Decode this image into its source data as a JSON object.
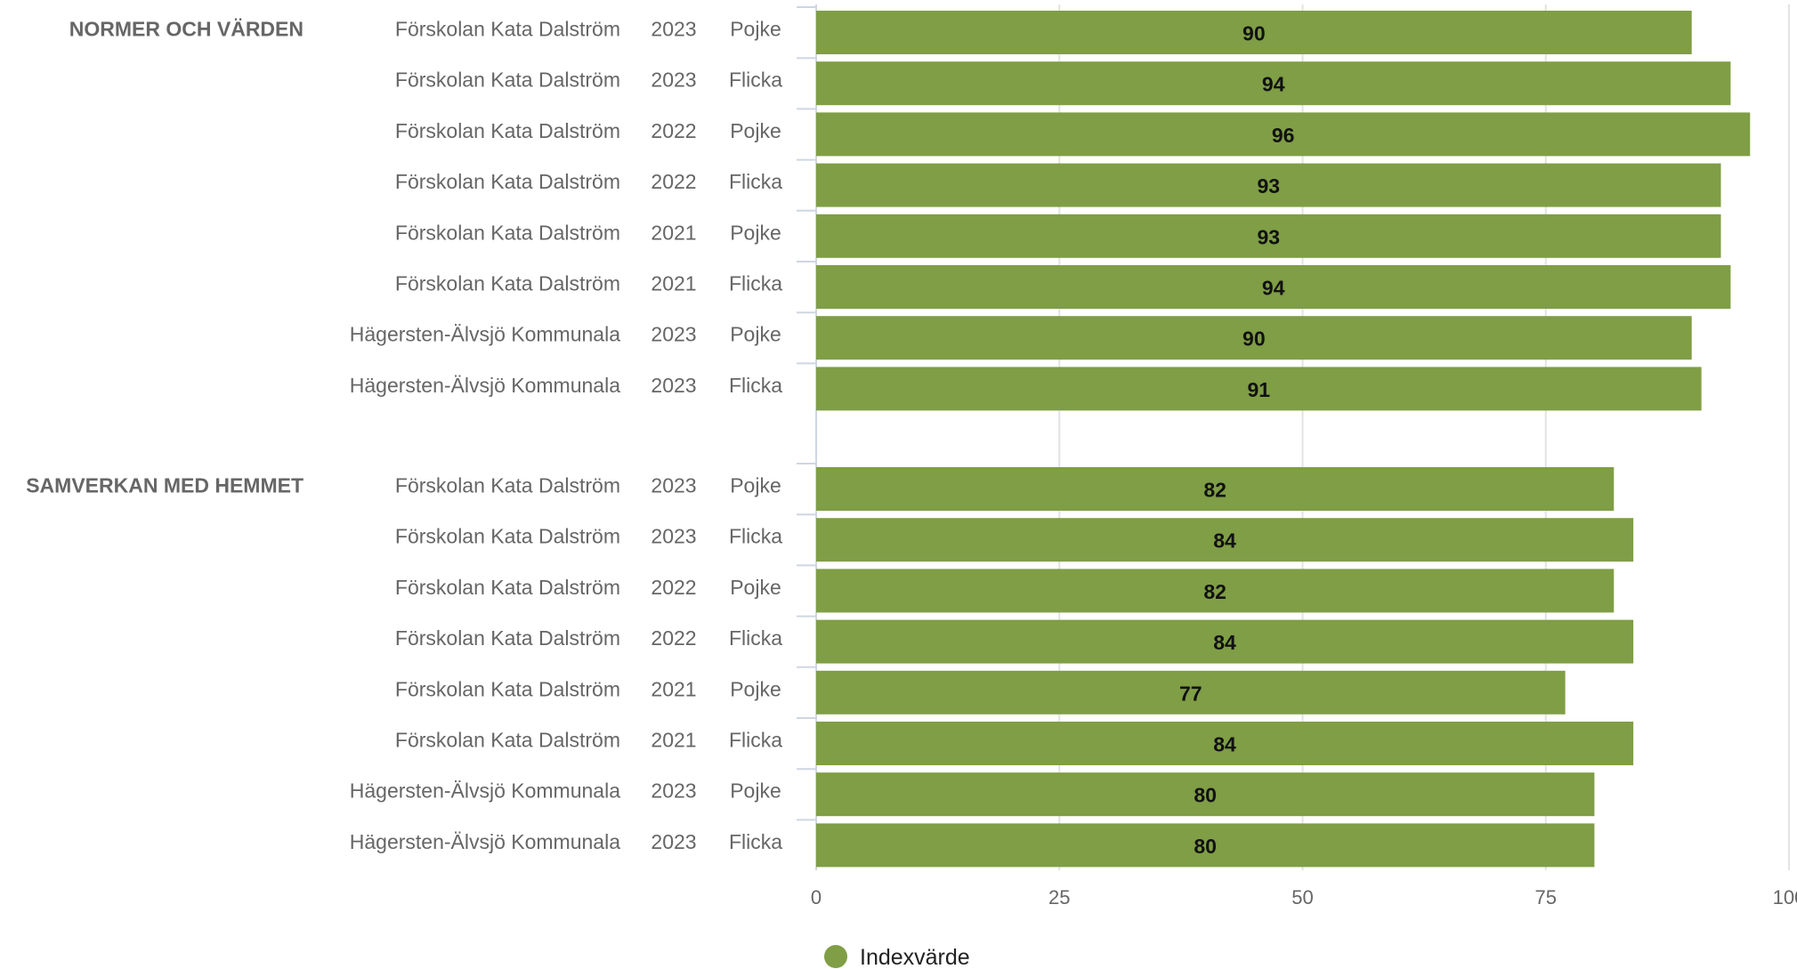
{
  "chart_data": {
    "type": "bar",
    "orientation": "horizontal",
    "xlim": [
      0,
      100
    ],
    "x_ticks": [
      "0",
      "25",
      "50",
      "75",
      "100"
    ],
    "grid": true,
    "legend_position": "bottom",
    "groups": [
      {
        "name": "NORMER OCH VÄRDEN",
        "rows": [
          {
            "school": "Förskolan Kata Dalström",
            "year": "2023",
            "gender": "Pojke",
            "value": 90
          },
          {
            "school": "Förskolan Kata Dalström",
            "year": "2023",
            "gender": "Flicka",
            "value": 94
          },
          {
            "school": "Förskolan Kata Dalström",
            "year": "2022",
            "gender": "Pojke",
            "value": 96
          },
          {
            "school": "Förskolan Kata Dalström",
            "year": "2022",
            "gender": "Flicka",
            "value": 93
          },
          {
            "school": "Förskolan Kata Dalström",
            "year": "2021",
            "gender": "Pojke",
            "value": 93
          },
          {
            "school": "Förskolan Kata Dalström",
            "year": "2021",
            "gender": "Flicka",
            "value": 94
          },
          {
            "school": "Hägersten-Älvsjö Kommunala",
            "year": "2023",
            "gender": "Pojke",
            "value": 90
          },
          {
            "school": "Hägersten-Älvsjö Kommunala",
            "year": "2023",
            "gender": "Flicka",
            "value": 91
          }
        ]
      },
      {
        "name": "SAMVERKAN MED HEMMET",
        "rows": [
          {
            "school": "Förskolan Kata Dalström",
            "year": "2023",
            "gender": "Pojke",
            "value": 82
          },
          {
            "school": "Förskolan Kata Dalström",
            "year": "2023",
            "gender": "Flicka",
            "value": 84
          },
          {
            "school": "Förskolan Kata Dalström",
            "year": "2022",
            "gender": "Pojke",
            "value": 82
          },
          {
            "school": "Förskolan Kata Dalström",
            "year": "2022",
            "gender": "Flicka",
            "value": 84
          },
          {
            "school": "Förskolan Kata Dalström",
            "year": "2021",
            "gender": "Pojke",
            "value": 77
          },
          {
            "school": "Förskolan Kata Dalström",
            "year": "2021",
            "gender": "Flicka",
            "value": 84
          },
          {
            "school": "Hägersten-Älvsjö Kommunala",
            "year": "2023",
            "gender": "Pojke",
            "value": 80
          },
          {
            "school": "Hägersten-Älvsjö Kommunala",
            "year": "2023",
            "gender": "Flicka",
            "value": 80
          }
        ]
      }
    ],
    "series": [
      {
        "name": "Indexvärde",
        "color": "#7f9e45"
      }
    ]
  }
}
